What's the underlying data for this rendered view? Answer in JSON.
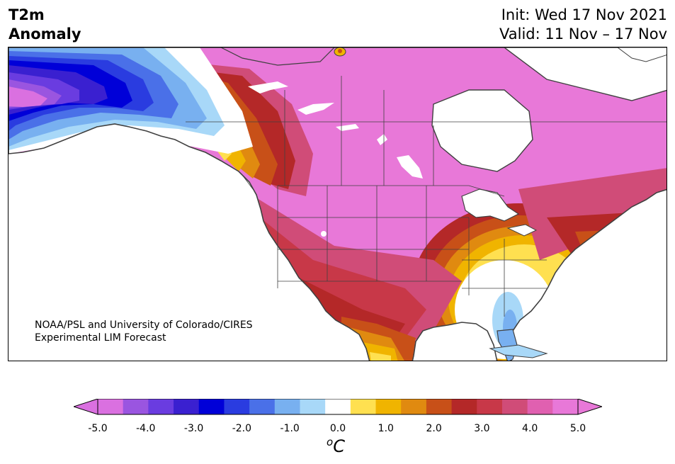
{
  "title": {
    "left_line1": "T2m",
    "left_line2": "Anomaly",
    "init": "Init: Wed 17 Nov 2021",
    "valid": "Valid: 11 Nov – 17 Nov"
  },
  "credit": {
    "line1": "NOAA/PSL and University of Colorado/CIRES",
    "line2": "Experimental LIM Forecast"
  },
  "colorbar": {
    "tick_labels": [
      "-5.0",
      "-4.0",
      "-3.0",
      "-2.0",
      "-1.0",
      "0.0",
      "1.0",
      "2.0",
      "3.0",
      "4.0",
      "5.0"
    ],
    "unit_base": "C",
    "unit_sup": "o",
    "levels": [
      -5.0,
      -4.5,
      -4.0,
      -3.5,
      -3.0,
      -2.5,
      -2.0,
      -1.5,
      -1.0,
      -0.5,
      0.5,
      1.0,
      1.5,
      2.0,
      2.5,
      3.0,
      3.5,
      4.0,
      4.5,
      5.0
    ],
    "colors": [
      "#da70e0",
      "#9a55e0",
      "#6a3ce0",
      "#3a20d0",
      "#0000d8",
      "#2a3ce0",
      "#4a70e8",
      "#78b0f0",
      "#a8d8f8",
      "#ffffff",
      "#ffe050",
      "#f0b400",
      "#e08a10",
      "#c85018",
      "#b42828",
      "#c83848",
      "#d04c78",
      "#e060b0",
      "#e878d8"
    ],
    "extend": "both"
  },
  "map": {
    "region": "North America",
    "projection": "Lambert conformal",
    "anomaly_pattern": {
      "cold_region": "Alaska and Yukon, strongest over Alaska (below -3.0)",
      "warm_region": "Central and western Canada and central US, strongest above +5.0",
      "neutral_region": "Southeastern US near 0, slight cold over Florida"
    }
  }
}
